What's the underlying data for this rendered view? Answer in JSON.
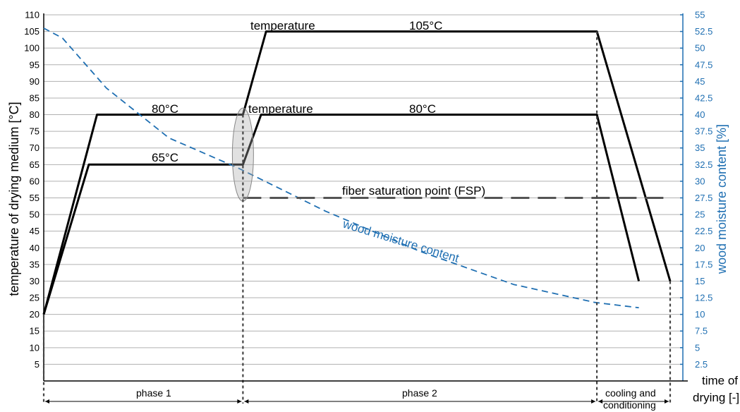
{
  "chart_data": {
    "type": "line",
    "y_left": {
      "label": "temperature of drying medium [°C]",
      "ticks": [
        5,
        10,
        15,
        20,
        25,
        30,
        35,
        40,
        45,
        50,
        55,
        60,
        65,
        70,
        75,
        80,
        85,
        90,
        95,
        100,
        105,
        110
      ],
      "range": [
        0,
        110
      ]
    },
    "y_right": {
      "label": "wood moisture content [%]",
      "ticks": [
        2.5,
        5,
        7.5,
        10,
        12.5,
        15,
        17.5,
        20,
        22.5,
        25,
        27.5,
        30,
        32.5,
        35,
        37.5,
        40,
        42.5,
        45,
        47.5,
        50,
        52.5,
        55
      ],
      "range": [
        0,
        55
      ],
      "color": "#1f6fb2"
    },
    "x_axis": {
      "label_line1": "time of",
      "label_line2": "drying [-]",
      "range": [
        0,
        100
      ],
      "phases": [
        {
          "name": "phase 1",
          "start": 0,
          "end": 31.8
        },
        {
          "name": "phase 2",
          "start": 31.8,
          "end": 88.3
        },
        {
          "name_line1": "cooling and",
          "name_line2": "conditioning",
          "start": 88.3,
          "end": 100
        }
      ],
      "dividers": [
        0,
        31.8,
        88.3,
        100
      ]
    },
    "series": [
      {
        "style": "solid",
        "color": "#000000",
        "points": [
          [
            0,
            20
          ],
          [
            8.5,
            80
          ],
          [
            31.8,
            80
          ],
          [
            35.5,
            105
          ],
          [
            88.3,
            105
          ],
          [
            100,
            30
          ]
        ]
      },
      {
        "style": "solid",
        "color": "#000000",
        "points": [
          [
            0,
            20
          ],
          [
            7.2,
            65
          ],
          [
            31.8,
            65
          ],
          [
            34.7,
            80
          ],
          [
            88.3,
            80
          ],
          [
            95,
            30
          ]
        ]
      },
      {
        "style": "dashed",
        "color": "#1f6fb2",
        "axis": "right",
        "points": [
          [
            0,
            53
          ],
          [
            3,
            51.5
          ],
          [
            10,
            44
          ],
          [
            20,
            36.5
          ],
          [
            31,
            32
          ],
          [
            45,
            25.5
          ],
          [
            60,
            19.5
          ],
          [
            75,
            14.5
          ],
          [
            88,
            11.8
          ],
          [
            95,
            11
          ]
        ]
      },
      {
        "style": "long-dash",
        "color": "#555555",
        "points": [
          [
            31.8,
            55
          ],
          [
            100,
            55
          ]
        ]
      }
    ],
    "annotations": {
      "top_label": "temperature",
      "top_value": "105°C",
      "mid_label": "temperature",
      "mid_value": "80°C",
      "phase1_upper_value": "80°C",
      "phase1_lower_value": "65°C",
      "fsp_label": "fiber saturation point (FSP)",
      "moisture_label": "wood moisture content"
    },
    "highlight_ellipse": {
      "x": 31.8,
      "y_center": 67.5,
      "y_span": [
        54,
        82
      ]
    }
  }
}
